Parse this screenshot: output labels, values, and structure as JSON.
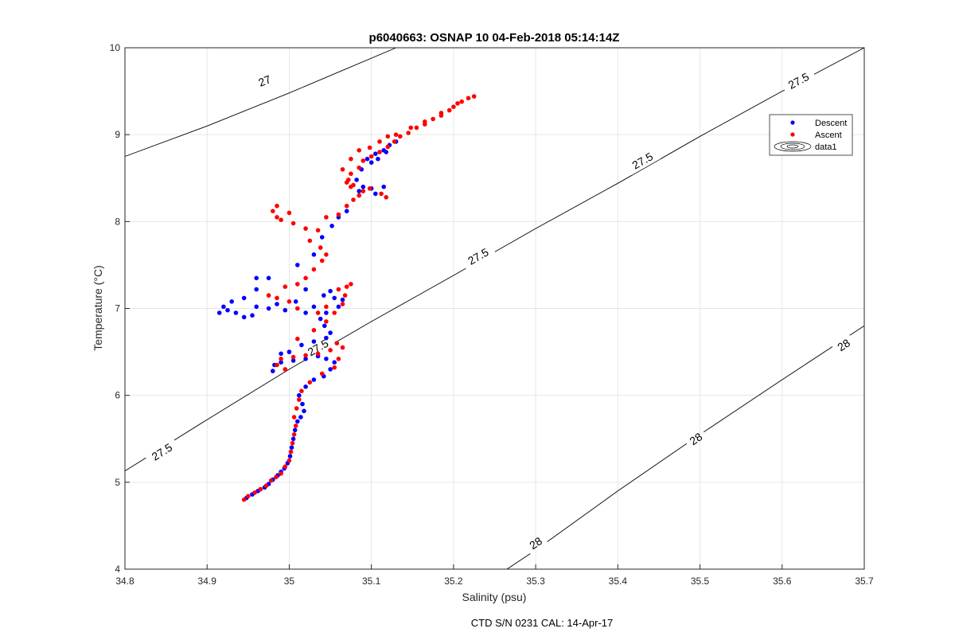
{
  "chart_data": {
    "type": "scatter",
    "title": "p6040663: OSNAP 10 04-Feb-2018 05:14:14Z",
    "xlabel": "Salinity (psu)",
    "ylabel": "Temperature (°C)",
    "xlim": [
      34.8,
      35.7
    ],
    "ylim": [
      4,
      10
    ],
    "xticks": [
      "34.8",
      "34.9",
      "35",
      "35.1",
      "35.2",
      "35.3",
      "35.4",
      "35.5",
      "35.6",
      "35.7"
    ],
    "yticks": [
      "4",
      "5",
      "6",
      "7",
      "8",
      "9",
      "10"
    ],
    "grid": true,
    "legend_position": "top-right",
    "footer": "CTD S/N 0231  CAL: 14-Apr-17",
    "series": [
      {
        "name": "Descent",
        "color": "#0000ff",
        "points": [
          [
            34.948,
            4.82
          ],
          [
            34.955,
            4.86
          ],
          [
            34.962,
            4.9
          ],
          [
            34.97,
            4.94
          ],
          [
            34.975,
            4.98
          ],
          [
            34.98,
            5.03
          ],
          [
            34.986,
            5.08
          ],
          [
            34.99,
            5.12
          ],
          [
            34.994,
            5.16
          ],
          [
            34.998,
            5.22
          ],
          [
            35.001,
            5.3
          ],
          [
            35.003,
            5.4
          ],
          [
            35.005,
            5.5
          ],
          [
            35.007,
            5.6
          ],
          [
            35.01,
            5.7
          ],
          [
            35.014,
            5.75
          ],
          [
            35.018,
            5.82
          ],
          [
            35.016,
            5.9
          ],
          [
            35.012,
            6.0
          ],
          [
            35.02,
            6.1
          ],
          [
            35.03,
            6.18
          ],
          [
            35.042,
            6.22
          ],
          [
            35.05,
            6.3
          ],
          [
            35.055,
            6.38
          ],
          [
            35.045,
            6.42
          ],
          [
            35.035,
            6.45
          ],
          [
            35.02,
            6.42
          ],
          [
            35.005,
            6.4
          ],
          [
            34.99,
            6.38
          ],
          [
            34.982,
            6.35
          ],
          [
            34.98,
            6.28
          ],
          [
            34.99,
            6.48
          ],
          [
            35.0,
            6.5
          ],
          [
            35.015,
            6.58
          ],
          [
            35.03,
            6.62
          ],
          [
            35.045,
            6.66
          ],
          [
            35.05,
            6.72
          ],
          [
            35.043,
            6.8
          ],
          [
            35.038,
            6.88
          ],
          [
            35.045,
            6.95
          ],
          [
            35.06,
            7.02
          ],
          [
            35.065,
            7.1
          ],
          [
            35.055,
            7.12
          ],
          [
            35.05,
            7.2
          ],
          [
            35.042,
            7.15
          ],
          [
            35.03,
            7.02
          ],
          [
            35.02,
            6.95
          ],
          [
            34.995,
            6.98
          ],
          [
            34.975,
            7.0
          ],
          [
            34.96,
            7.02
          ],
          [
            34.955,
            6.92
          ],
          [
            34.945,
            6.9
          ],
          [
            34.935,
            6.95
          ],
          [
            34.925,
            6.98
          ],
          [
            34.915,
            6.95
          ],
          [
            34.92,
            7.02
          ],
          [
            34.93,
            7.08
          ],
          [
            34.945,
            7.12
          ],
          [
            34.96,
            7.22
          ],
          [
            34.975,
            7.35
          ],
          [
            34.96,
            7.35
          ],
          [
            34.985,
            7.05
          ],
          [
            35.008,
            7.08
          ],
          [
            35.02,
            7.22
          ],
          [
            35.01,
            7.5
          ],
          [
            35.03,
            7.62
          ],
          [
            35.04,
            7.82
          ],
          [
            35.052,
            7.95
          ],
          [
            35.06,
            8.05
          ],
          [
            35.07,
            8.12
          ],
          [
            35.085,
            8.35
          ],
          [
            35.1,
            8.38
          ],
          [
            35.115,
            8.4
          ],
          [
            35.105,
            8.32
          ],
          [
            35.09,
            8.4
          ],
          [
            35.082,
            8.48
          ],
          [
            35.088,
            8.6
          ],
          [
            35.095,
            8.72
          ],
          [
            35.105,
            8.78
          ],
          [
            35.115,
            8.82
          ],
          [
            35.122,
            8.88
          ],
          [
            35.13,
            8.92
          ],
          [
            35.118,
            8.8
          ],
          [
            35.108,
            8.72
          ],
          [
            35.1,
            8.68
          ]
        ]
      },
      {
        "name": "Ascent",
        "color": "#ff0000",
        "points": [
          [
            34.945,
            4.8
          ],
          [
            34.95,
            4.84
          ],
          [
            34.958,
            4.88
          ],
          [
            34.965,
            4.92
          ],
          [
            34.972,
            4.96
          ],
          [
            34.978,
            5.02
          ],
          [
            34.984,
            5.06
          ],
          [
            34.99,
            5.1
          ],
          [
            34.995,
            5.18
          ],
          [
            35.0,
            5.25
          ],
          [
            35.002,
            5.35
          ],
          [
            35.004,
            5.45
          ],
          [
            35.006,
            5.55
          ],
          [
            35.008,
            5.65
          ],
          [
            35.006,
            5.75
          ],
          [
            35.009,
            5.85
          ],
          [
            35.012,
            5.95
          ],
          [
            35.015,
            6.05
          ],
          [
            35.025,
            6.15
          ],
          [
            35.04,
            6.25
          ],
          [
            35.055,
            6.32
          ],
          [
            35.06,
            6.42
          ],
          [
            35.065,
            6.55
          ],
          [
            35.058,
            6.6
          ],
          [
            35.05,
            6.52
          ],
          [
            35.035,
            6.48
          ],
          [
            35.02,
            6.46
          ],
          [
            35.005,
            6.44
          ],
          [
            34.99,
            6.42
          ],
          [
            34.985,
            6.35
          ],
          [
            34.995,
            6.3
          ],
          [
            35.01,
            6.65
          ],
          [
            35.03,
            6.75
          ],
          [
            35.045,
            6.85
          ],
          [
            35.055,
            6.95
          ],
          [
            35.065,
            7.05
          ],
          [
            35.068,
            7.15
          ],
          [
            35.07,
            7.25
          ],
          [
            35.075,
            7.28
          ],
          [
            35.06,
            7.22
          ],
          [
            35.045,
            7.02
          ],
          [
            35.035,
            6.95
          ],
          [
            35.01,
            7.0
          ],
          [
            35.0,
            7.08
          ],
          [
            34.985,
            7.12
          ],
          [
            34.975,
            7.15
          ],
          [
            34.995,
            7.25
          ],
          [
            35.01,
            7.28
          ],
          [
            35.02,
            7.35
          ],
          [
            35.03,
            7.45
          ],
          [
            35.04,
            7.55
          ],
          [
            35.045,
            7.62
          ],
          [
            35.038,
            7.7
          ],
          [
            35.025,
            7.78
          ],
          [
            35.035,
            7.9
          ],
          [
            35.02,
            7.92
          ],
          [
            35.005,
            7.98
          ],
          [
            34.99,
            8.02
          ],
          [
            34.985,
            8.05
          ],
          [
            34.98,
            8.12
          ],
          [
            34.985,
            8.18
          ],
          [
            35.0,
            8.1
          ],
          [
            35.045,
            8.05
          ],
          [
            35.06,
            8.08
          ],
          [
            35.07,
            8.18
          ],
          [
            35.078,
            8.25
          ],
          [
            35.085,
            8.3
          ],
          [
            35.09,
            8.35
          ],
          [
            35.098,
            8.38
          ],
          [
            35.112,
            8.32
          ],
          [
            35.118,
            8.28
          ],
          [
            35.078,
            8.42
          ],
          [
            35.072,
            8.48
          ],
          [
            35.075,
            8.55
          ],
          [
            35.085,
            8.62
          ],
          [
            35.09,
            8.7
          ],
          [
            35.1,
            8.75
          ],
          [
            35.11,
            8.8
          ],
          [
            35.12,
            8.86
          ],
          [
            35.128,
            8.92
          ],
          [
            35.135,
            8.98
          ],
          [
            35.145,
            9.02
          ],
          [
            35.155,
            9.08
          ],
          [
            35.165,
            9.12
          ],
          [
            35.175,
            9.18
          ],
          [
            35.185,
            9.22
          ],
          [
            35.195,
            9.28
          ],
          [
            35.2,
            9.32
          ],
          [
            35.21,
            9.38
          ],
          [
            35.218,
            9.42
          ],
          [
            35.225,
            9.44
          ],
          [
            35.205,
            9.36
          ],
          [
            35.185,
            9.25
          ],
          [
            35.165,
            9.15
          ],
          [
            35.148,
            9.08
          ],
          [
            35.13,
            9.0
          ],
          [
            35.12,
            8.98
          ],
          [
            35.11,
            8.92
          ],
          [
            35.098,
            8.85
          ],
          [
            35.085,
            8.82
          ],
          [
            35.075,
            8.72
          ],
          [
            35.065,
            8.6
          ],
          [
            35.075,
            8.4
          ],
          [
            35.07,
            8.45
          ]
        ]
      },
      {
        "name": "data1",
        "type": "contour",
        "color": "#000000",
        "levels": [
          {
            "level": "27",
            "label_positions": [
              [
                34.97,
                9.62
              ]
            ],
            "points": [
              [
                34.8,
                8.75
              ],
              [
                34.9,
                9.1
              ],
              [
                35.0,
                9.48
              ],
              [
                35.06,
                9.72
              ],
              [
                35.13,
                10.0
              ]
            ]
          },
          {
            "level": "27.5",
            "label_positions": [
              [
                34.845,
                5.35
              ],
              [
                35.035,
                6.55
              ],
              [
                35.23,
                7.6
              ],
              [
                35.43,
                8.7
              ],
              [
                35.62,
                9.62
              ]
            ],
            "points": [
              [
                34.8,
                5.13
              ],
              [
                34.9,
                5.72
              ],
              [
                35.0,
                6.3
              ],
              [
                35.1,
                6.85
              ],
              [
                35.2,
                7.38
              ],
              [
                35.3,
                7.92
              ],
              [
                35.4,
                8.44
              ],
              [
                35.5,
                8.98
              ],
              [
                35.6,
                9.5
              ],
              [
                35.7,
                10.0
              ]
            ]
          },
          {
            "level": "28",
            "label_positions": [
              [
                35.3,
                4.3
              ],
              [
                35.495,
                5.5
              ],
              [
                35.675,
                6.58
              ]
            ],
            "points": [
              [
                35.265,
                4.0
              ],
              [
                35.3,
                4.22
              ],
              [
                35.4,
                4.9
              ],
              [
                35.5,
                5.55
              ],
              [
                35.6,
                6.18
              ],
              [
                35.7,
                6.8
              ]
            ]
          }
        ]
      }
    ]
  }
}
